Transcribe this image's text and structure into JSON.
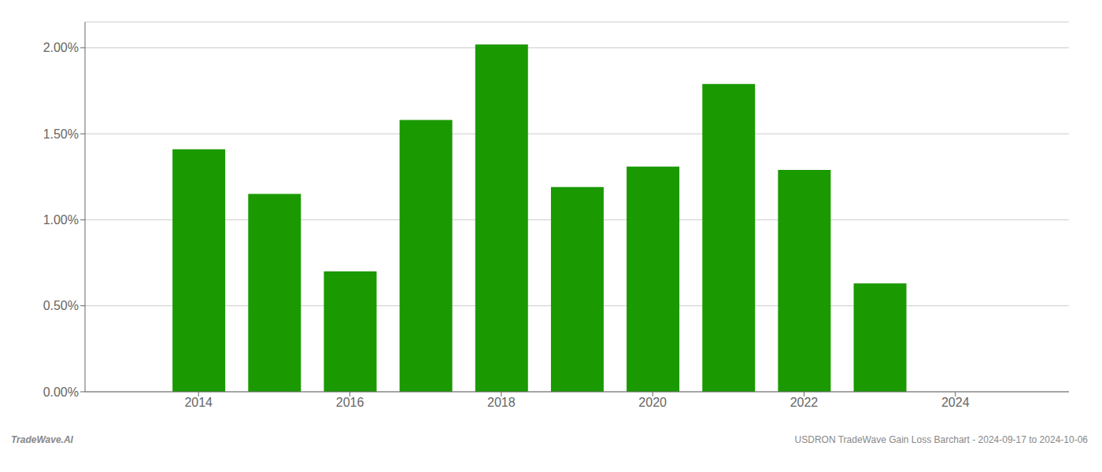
{
  "chart_data": {
    "type": "bar",
    "x": [
      2014,
      2015,
      2016,
      2017,
      2018,
      2019,
      2020,
      2021,
      2022,
      2023
    ],
    "values": [
      0.0141,
      0.0115,
      0.007,
      0.0158,
      0.0202,
      0.0119,
      0.0131,
      0.0179,
      0.0129,
      0.0063
    ],
    "color": "#1a9900",
    "xlim": [
      2012.5,
      2025.5
    ],
    "xticks": [
      2014,
      2016,
      2018,
      2020,
      2022,
      2024
    ],
    "ylim": [
      0.0,
      0.0215
    ],
    "yticks": [
      {
        "value": 0.0,
        "label": "0.00%"
      },
      {
        "value": 0.005,
        "label": "0.50%"
      },
      {
        "value": 0.01,
        "label": "1.00%"
      },
      {
        "value": 0.015,
        "label": "1.50%"
      },
      {
        "value": 0.02,
        "label": "2.00%"
      }
    ],
    "grid": "y",
    "annotations": [
      "TradeWave.AI",
      "USDRON TradeWave Gain Loss Barchart - 2024-09-17 to 2024-10-06"
    ]
  }
}
